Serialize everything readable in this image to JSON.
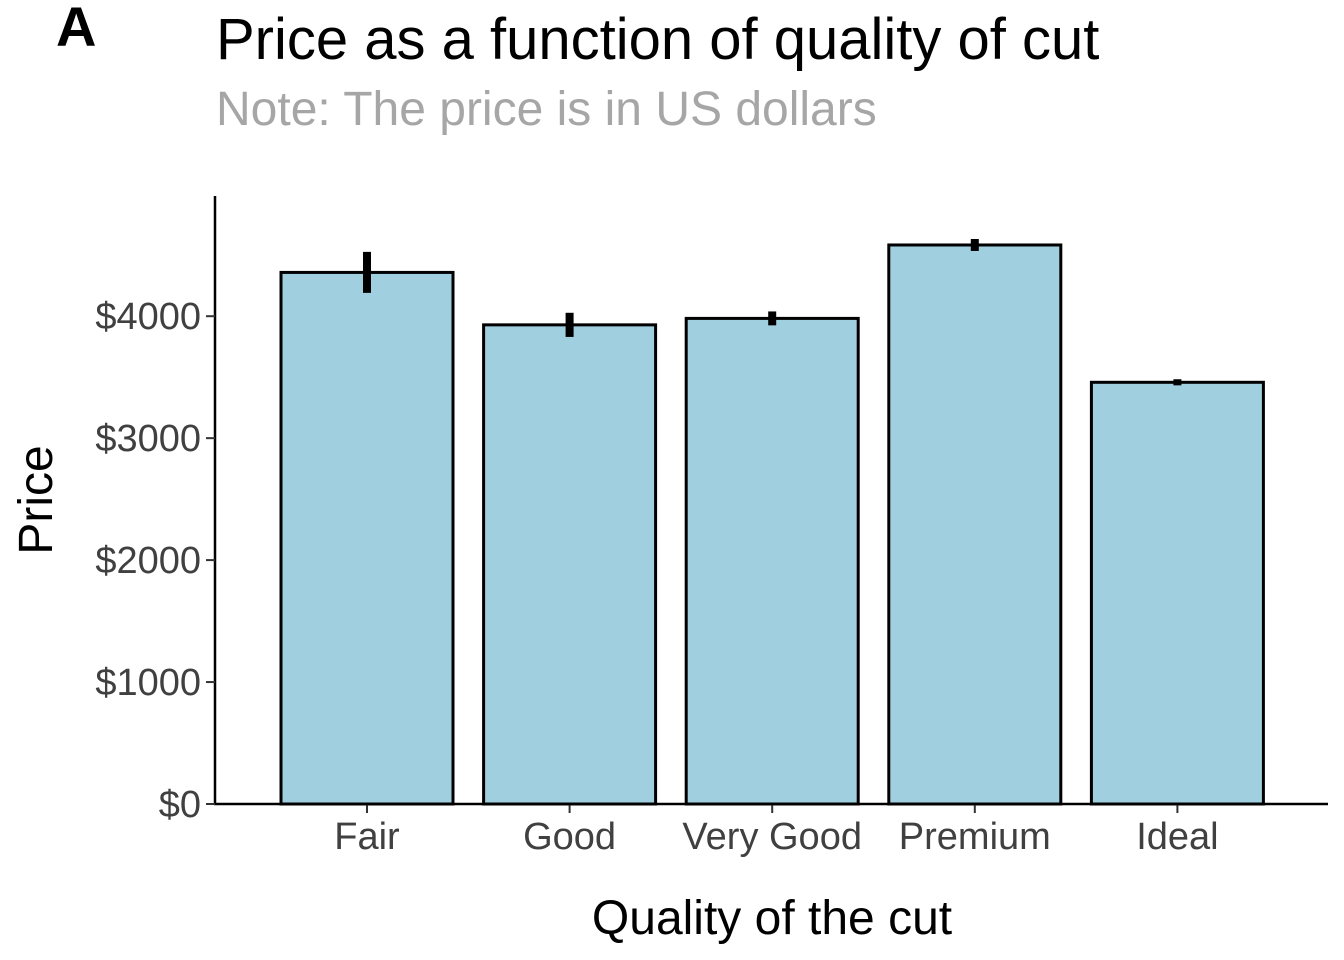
{
  "panel_tag": "A",
  "chart_data": {
    "type": "bar",
    "title": "Price as a function of quality of cut",
    "subtitle": "Note: The price is in US dollars",
    "xlabel": "Quality of the cut",
    "ylabel": "Price",
    "categories": [
      "Fair",
      "Good",
      "Very Good",
      "Premium",
      "Ideal"
    ],
    "values": [
      4359,
      3929,
      3982,
      4584,
      3458
    ],
    "error_low": [
      4191,
      3830,
      3925,
      4535,
      3433
    ],
    "error_high": [
      4527,
      4028,
      4039,
      4633,
      3483
    ],
    "ylim": [
      0,
      5000
    ],
    "yticks": [
      0,
      1000,
      2000,
      3000,
      4000
    ],
    "ytick_labels": [
      "$0",
      "$1000",
      "$2000",
      "$3000",
      "$4000"
    ],
    "bar_color": "#a0cfe0",
    "bar_edge_color": "#000000",
    "error_color": "#000000",
    "grid": false,
    "legend": "none"
  }
}
